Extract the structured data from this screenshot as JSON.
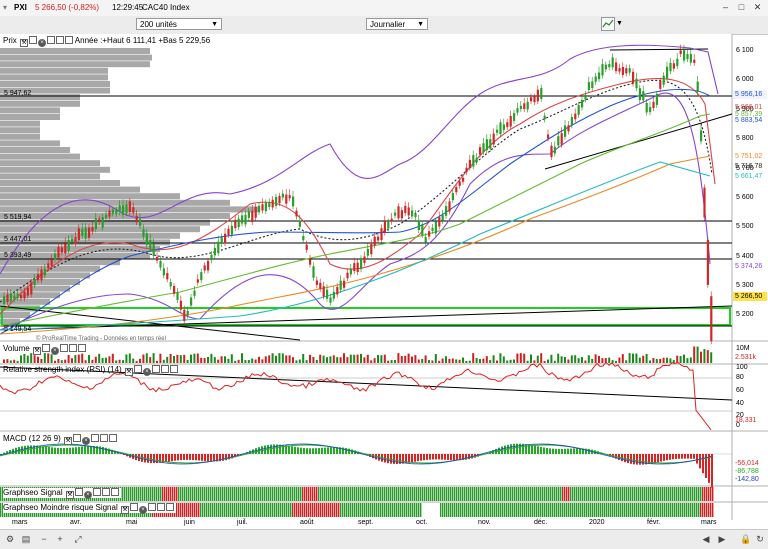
{
  "title": {
    "symbol": "PXI",
    "price_change": "5 266,50 (-0,82%)",
    "time": "12:29:45",
    "name": "CAC40 Index"
  },
  "toolbar": {
    "units_value": "200 unités",
    "period_value": "Journalier"
  },
  "price_panel": {
    "header_label": "Prix",
    "header_info": "Année :+Haut 6 111,41 +Bas 5 229,56",
    "watermark": "© ProRealTime Trading - Données en temps réel",
    "axis_ticks": [
      "6 100",
      "6 000",
      "5 900",
      "5 800",
      "5 700",
      "5 600",
      "5 500",
      "5 400",
      "5 300",
      "5 200"
    ],
    "left_levels": [
      "5 947,62",
      "5 519,94",
      "5 447,01",
      "5 393,49",
      "5 149,54"
    ],
    "price_tags": [
      {
        "value": "5 956,16",
        "color": "#2255cc"
      },
      {
        "value": "5 866,01",
        "color": "#dd4444"
      },
      {
        "value": "5 857,39",
        "color": "#66bb33"
      },
      {
        "value": "5 883,54",
        "color": "#2255cc"
      },
      {
        "value": "5 751,02",
        "color": "#ee8822"
      },
      {
        "value": "5 716,78",
        "color": "#222222"
      },
      {
        "value": "5 661,47",
        "color": "#22bbbb"
      },
      {
        "value": "5 374,26",
        "color": "#8844cc"
      },
      {
        "value": "5 266,50",
        "color": "#000000"
      }
    ]
  },
  "volume_panel": {
    "header_label": "Volume",
    "axis_top": "10M",
    "value_tag": "2.531k"
  },
  "rsi_panel": {
    "header_label": "Relative strength index (RSI) (14)",
    "axis_ticks": [
      "100",
      "80",
      "60",
      "40",
      "20",
      "0"
    ],
    "value_tag": "18,331"
  },
  "macd_panel": {
    "header_label": "MACD (12 26 9)",
    "value_tags": [
      {
        "value": "-56,014",
        "color": "#dd2222"
      },
      {
        "value": "-86,788",
        "color": "#22aa22"
      },
      {
        "value": "-142,80",
        "color": "#2244cc"
      }
    ]
  },
  "graphseo_panel": {
    "header_label": "Graphseo Signal"
  },
  "graphseo_risk_panel": {
    "header_label": "Graphseo Moindre risque Signal"
  },
  "x_axis": {
    "months": [
      "mars",
      "avr.",
      "mai",
      "juin",
      "juil.",
      "août",
      "sept.",
      "oct.",
      "nov.",
      "déc.",
      "2020",
      "févr.",
      "mars"
    ]
  }
}
